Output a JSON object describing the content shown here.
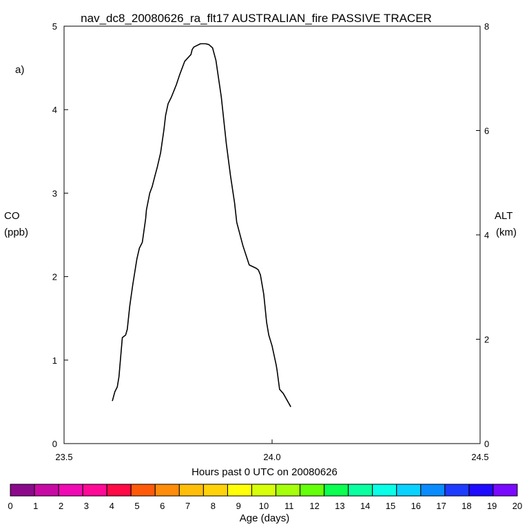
{
  "chart_data": {
    "type": "line",
    "title": "nav_dc8_20080626_ra_flt17 AUSTRALIAN_fire PASSIVE TRACER",
    "panel_label": "a)",
    "xlabel": "Hours past 0 UTC on 20080626",
    "ylabel": "CO",
    "ylabel_units": "(ppb)",
    "y2label": "ALT",
    "y2label_units": "(km)",
    "xlim": [
      23.5,
      24.5
    ],
    "ylim": [
      0,
      5
    ],
    "y2lim": [
      0,
      8
    ],
    "x_ticks": [
      23.5,
      24.0,
      24.5
    ],
    "x_tick_labels": [
      "23.5",
      "24.0",
      "24.5"
    ],
    "y_ticks": [
      0,
      1,
      2,
      3,
      4,
      5
    ],
    "y_tick_labels": [
      "0",
      "1",
      "2",
      "3",
      "4",
      "5"
    ],
    "y2_ticks": [
      0,
      2,
      4,
      6,
      8
    ],
    "y2_tick_labels": [
      "0",
      "2",
      "4",
      "6",
      "8"
    ],
    "grid": false,
    "series": [
      {
        "axis": "y",
        "color": "#000000",
        "x": [
          23.616,
          23.622,
          23.628,
          23.632,
          23.64,
          23.648,
          23.652,
          23.658,
          23.665,
          23.675,
          23.681,
          23.688,
          23.696,
          23.698,
          23.706,
          23.712,
          23.718,
          23.724,
          23.732,
          23.74,
          23.744,
          23.75,
          23.758,
          23.77,
          23.778,
          23.79,
          23.805,
          23.808,
          23.812,
          23.828,
          23.84,
          23.848,
          23.857,
          23.865,
          23.878,
          23.89,
          23.9,
          23.91,
          23.915,
          23.93,
          23.945,
          23.962,
          23.967,
          23.972,
          23.98,
          23.987,
          23.992,
          24.0,
          24.01,
          24.012,
          24.018,
          24.027,
          24.045
        ],
        "y": [
          0.51,
          0.62,
          0.68,
          0.8,
          1.27,
          1.3,
          1.37,
          1.65,
          1.9,
          2.21,
          2.34,
          2.41,
          2.69,
          2.8,
          3.0,
          3.08,
          3.2,
          3.31,
          3.48,
          3.76,
          3.93,
          4.07,
          4.15,
          4.3,
          4.42,
          4.58,
          4.66,
          4.72,
          4.75,
          4.79,
          4.79,
          4.78,
          4.74,
          4.59,
          4.15,
          3.59,
          3.21,
          2.88,
          2.65,
          2.37,
          2.14,
          2.1,
          2.08,
          2.02,
          1.79,
          1.45,
          1.3,
          1.17,
          0.94,
          0.88,
          0.65,
          0.6,
          0.44
        ]
      }
    ],
    "colorbar": {
      "label": "Age (days)",
      "tick_labels": [
        "0",
        "1",
        "2",
        "3",
        "4",
        "5",
        "6",
        "7",
        "8",
        "9",
        "10",
        "11",
        "12",
        "13",
        "14",
        "15",
        "16",
        "17",
        "18",
        "19",
        "20"
      ],
      "colors": [
        "#8b0a8b",
        "#c80aa5",
        "#f00ab4",
        "#ff0a96",
        "#ff0a46",
        "#ff5a0a",
        "#ff8c0a",
        "#ffbe0a",
        "#ffd20a",
        "#ffff0a",
        "#d7ff0a",
        "#a5ff0a",
        "#64ff0a",
        "#0aff50",
        "#0affa0",
        "#0affe6",
        "#0ad2ff",
        "#0a8cff",
        "#1e3cff",
        "#1e0aff",
        "#7a0aff"
      ]
    }
  }
}
